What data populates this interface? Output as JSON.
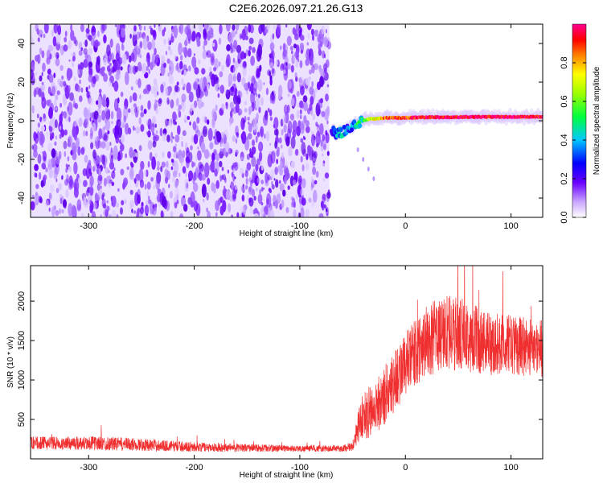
{
  "title": "C2E6.2026.097.21.26.G13",
  "chart_data": [
    {
      "type": "heatmap",
      "xlabel": "Height of straight line (km)",
      "ylabel": "Frequency (Hz)",
      "xlim": [
        -355,
        130
      ],
      "ylim": [
        -50,
        50
      ],
      "xticks": [
        -300,
        -200,
        -100,
        0,
        100
      ],
      "yticks": [
        -40,
        -20,
        0,
        20,
        40
      ],
      "noise_region_x": [
        -355,
        -72
      ],
      "signal_track": {
        "x": [
          -70,
          -65,
          -60,
          -55,
          -50,
          -45,
          -40,
          -35,
          -30,
          -20,
          -10,
          0,
          20,
          40,
          60,
          80,
          100,
          130
        ],
        "freq": [
          -5,
          -7,
          -6,
          -4,
          -3,
          -1,
          0,
          1,
          1,
          1.5,
          1.5,
          1.5,
          1.8,
          1.8,
          2,
          2,
          2,
          2
        ],
        "amplitude": [
          0.25,
          0.35,
          0.4,
          0.3,
          0.35,
          0.45,
          0.5,
          0.6,
          0.7,
          0.85,
          0.9,
          0.9,
          0.95,
          0.95,
          1.0,
          0.95,
          1.0,
          0.95
        ]
      },
      "side_trail": {
        "x": [
          -45,
          -40,
          -35,
          -30
        ],
        "freq": [
          -15,
          -20,
          -25,
          -30
        ]
      }
    },
    {
      "type": "colorbar",
      "label": "Normalized spectral amplitude",
      "range": [
        0.0,
        1.0
      ],
      "ticks": [
        0.0,
        0.2,
        0.4,
        0.6,
        0.8
      ],
      "tick_labels": [
        "0.0",
        "0.2",
        "0.4",
        "0.6",
        "0.8"
      ]
    },
    {
      "type": "line",
      "xlabel": "Height of straight line (km)",
      "ylabel": "SNR (10 * v/v)",
      "xlim": [
        -355,
        130
      ],
      "ylim": [
        0,
        2450
      ],
      "xticks": [
        -300,
        -200,
        -100,
        0,
        100
      ],
      "yticks": [
        500,
        1000,
        1500,
        2000
      ],
      "color": "#f03030",
      "profile": {
        "x": [
          -355,
          -300,
          -250,
          -200,
          -150,
          -100,
          -60,
          -50,
          -45,
          -40,
          -30,
          -20,
          -10,
          0,
          20,
          40,
          60,
          80,
          100,
          130
        ],
        "mean": [
          200,
          200,
          180,
          150,
          140,
          130,
          130,
          160,
          400,
          550,
          620,
          800,
          1000,
          1200,
          1500,
          1600,
          1550,
          1450,
          1450,
          1400
        ],
        "spread": [
          80,
          90,
          80,
          60,
          50,
          40,
          40,
          60,
          200,
          300,
          350,
          400,
          400,
          400,
          450,
          500,
          450,
          400,
          380,
          380
        ]
      }
    }
  ]
}
